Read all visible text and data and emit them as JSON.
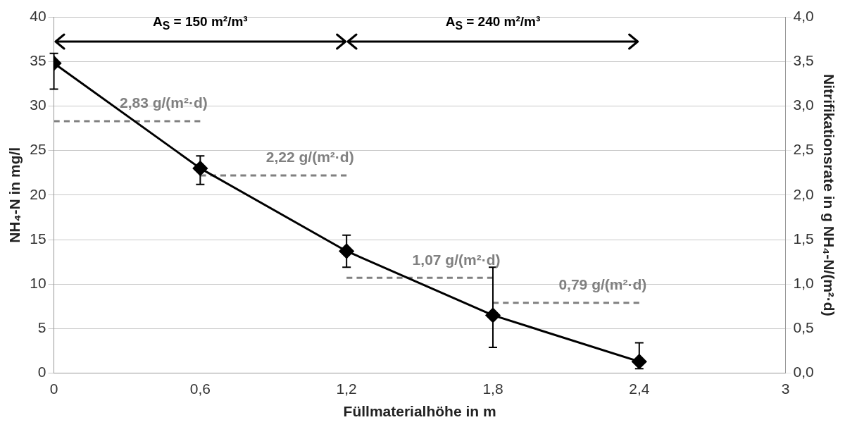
{
  "chart_data": {
    "type": "line",
    "xlabel": "Füllmaterialhöhe in m",
    "ylabel": "NH₄-N in mg/l",
    "y2label": "Nitrifikationsrate in g NH₄-N/(m²·d)",
    "x": [
      0,
      0.6,
      1.2,
      1.8,
      2.4
    ],
    "series": [
      {
        "color": "#000000",
        "marker": "diamond",
        "values": [
          34.8,
          23.0,
          13.7,
          6.5,
          1.3
        ],
        "errors": [
          [
            31.9,
            35.9
          ],
          [
            21.2,
            24.4
          ],
          [
            11.9,
            15.5
          ],
          [
            2.9,
            11.9
          ],
          [
            0.5,
            3.4
          ]
        ]
      },
      {
        "name": "2,83 g/(m²·d)",
        "type": "line",
        "axis": "y2",
        "x": [
          0,
          0.6
        ],
        "values": [
          2.83,
          2.83
        ],
        "color": "#808080",
        "line_style": "dashed",
        "marker": "none"
      },
      {
        "name": "2,22 g/(m²·d)",
        "type": "line",
        "axis": "y2",
        "x": [
          0.6,
          1.2
        ],
        "values": [
          2.22,
          2.22
        ],
        "color": "#808080",
        "line_style": "dashed",
        "marker": "none"
      },
      {
        "name": "1,07 g/(m²·d)",
        "type": "line",
        "axis": "y2",
        "x": [
          1.2,
          1.8
        ],
        "values": [
          1.07,
          1.07
        ],
        "color": "#808080",
        "line_style": "dashed",
        "marker": "none"
      },
      {
        "name": "0,79 g/(m²·d)",
        "type": "line",
        "axis": "y2",
        "x": [
          1.8,
          2.4
        ],
        "values": [
          0.79,
          0.79
        ],
        "color": "#808080",
        "line_style": "dashed",
        "marker": "none"
      }
    ],
    "xlim": [
      0,
      3
    ],
    "xticks": [
      0,
      {
        "value": 0.6,
        "label": "0,6"
      },
      {
        "value": 1.2,
        "label": "1,2"
      },
      {
        "value": 1.8,
        "label": "1,8"
      },
      {
        "value": 2.4,
        "label": "2,4"
      },
      3
    ],
    "ylim": [
      0,
      40
    ],
    "yticks": [
      0,
      5,
      10,
      15,
      20,
      25,
      30,
      35,
      40
    ],
    "y2lim": [
      0,
      4
    ],
    "y2ticks": [
      {
        "value": 0,
        "label": "0,0"
      },
      {
        "value": 0.5,
        "label": "0,5"
      },
      {
        "value": 1,
        "label": "1,0"
      },
      {
        "value": 1.5,
        "label": "1,5"
      },
      {
        "value": 2,
        "label": "2,0"
      },
      {
        "value": 2.5,
        "label": "2,5"
      },
      {
        "value": 3,
        "label": "3,0"
      },
      {
        "value": 3.5,
        "label": "3,5"
      },
      {
        "value": 4,
        "label": "4,0"
      }
    ],
    "annotations": [
      "A$_{S}$ = 150 m²/m³",
      "A$_{S}$ = 240 m²/m³"
    ],
    "grid": "y",
    "legend": false
  }
}
